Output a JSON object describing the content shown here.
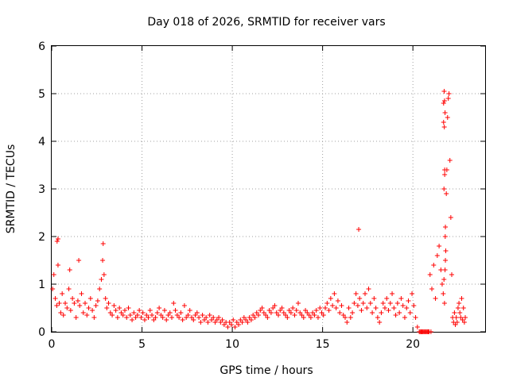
{
  "colors": {
    "series": "#ff0000",
    "axis": "#000000",
    "grid": "#a0a0a0",
    "background": "#ffffff"
  },
  "chart_data": {
    "type": "scatter",
    "title": "Day 018 of 2026, SRMTID for receiver vars",
    "xlabel": "GPS time / hours",
    "ylabel": "SRMTID / TECUs",
    "xlim": [
      0,
      24
    ],
    "ylim": [
      0,
      6
    ],
    "xticks": [
      0,
      5,
      10,
      15,
      20
    ],
    "yticks": [
      0,
      1,
      2,
      3,
      4,
      5,
      6
    ],
    "x_tick_labels": [
      "0",
      "5",
      "10",
      "15",
      "20"
    ],
    "y_tick_labels": [
      "0",
      "1",
      "2",
      "3",
      "4",
      "5",
      "6"
    ],
    "grid": true,
    "marker": "+",
    "series": [
      {
        "name": "SRMTID",
        "x": [
          0.05,
          0.12,
          0.2,
          0.28,
          0.35,
          0.42,
          0.5,
          0.58,
          0.65,
          0.75,
          0.85,
          0.95,
          1.05,
          1.15,
          1.25,
          1.35,
          1.45,
          1.55,
          1.65,
          1.75,
          1.85,
          1.95,
          2.05,
          2.15,
          2.25,
          2.35,
          2.45,
          2.55,
          2.65,
          2.75,
          2.82,
          2.9,
          2.98,
          3.05,
          3.15,
          3.25,
          3.35,
          3.45,
          3.55,
          3.65,
          3.75,
          3.85,
          3.95,
          4.05,
          4.15,
          4.25,
          4.35,
          4.45,
          4.55,
          4.65,
          4.75,
          4.85,
          4.95,
          5.05,
          5.15,
          5.25,
          5.35,
          5.45,
          5.55,
          5.65,
          5.75,
          5.85,
          5.95,
          6.05,
          6.15,
          6.25,
          6.35,
          6.45,
          6.55,
          6.65,
          6.75,
          6.85,
          6.95,
          7.05,
          7.15,
          7.25,
          7.35,
          7.45,
          7.55,
          7.65,
          7.75,
          7.85,
          7.95,
          8.05,
          8.15,
          8.25,
          8.35,
          8.45,
          8.55,
          8.65,
          8.75,
          8.85,
          8.95,
          9.05,
          9.15,
          9.25,
          9.35,
          9.45,
          9.55,
          9.65,
          9.75,
          9.85,
          9.95,
          10.05,
          10.15,
          10.25,
          10.35,
          10.45,
          10.55,
          10.65,
          10.75,
          10.85,
          10.95,
          11.05,
          11.15,
          11.25,
          11.35,
          11.45,
          11.55,
          11.65,
          11.75,
          11.85,
          11.95,
          12.05,
          12.15,
          12.25,
          12.35,
          12.45,
          12.55,
          12.65,
          12.75,
          12.85,
          12.95,
          13.05,
          13.15,
          13.25,
          13.35,
          13.45,
          13.55,
          13.65,
          13.75,
          13.85,
          13.95,
          14.05,
          14.15,
          14.25,
          14.35,
          14.45,
          14.55,
          14.65,
          14.75,
          14.85,
          14.95,
          15.05,
          15.15,
          15.25,
          15.35,
          15.45,
          15.55,
          15.65,
          15.75,
          15.85,
          15.95,
          16.05,
          16.15,
          16.25,
          16.35,
          16.45,
          16.55,
          16.65,
          16.75,
          16.85,
          16.95,
          17.05,
          17.15,
          17.25,
          17.35,
          17.45,
          17.55,
          17.65,
          17.75,
          17.85,
          17.95,
          18.05,
          18.15,
          18.25,
          18.35,
          18.45,
          18.55,
          18.65,
          18.75,
          18.85,
          18.95,
          19.05,
          19.15,
          19.25,
          19.35,
          19.45,
          19.55,
          19.65,
          19.75,
          19.85,
          19.95,
          20.05,
          20.15,
          20.25,
          20.35,
          20.45,
          20.55,
          20.65,
          20.75,
          20.85,
          20.95,
          21.05,
          21.15,
          21.25,
          21.35,
          21.45,
          21.55,
          21.62,
          21.68,
          21.72,
          21.75,
          21.78,
          21.82,
          21.85,
          21.88,
          21.92,
          21.96,
          22.0,
          22.05,
          22.1,
          22.15,
          22.2,
          22.25,
          22.3,
          22.35,
          22.4,
          22.45,
          22.5,
          22.55,
          22.6,
          22.65,
          22.7,
          22.75,
          22.8,
          22.85,
          22.9,
          0.3,
          0.35,
          2.85,
          1.0,
          1.5,
          17.0,
          20.4,
          20.5,
          20.6,
          20.7,
          20.8,
          20.9,
          21.0,
          21.7,
          21.72,
          21.74,
          21.76,
          21.78,
          21.8,
          21.7,
          21.73,
          21.76,
          21.79,
          21.75,
          21.8
        ],
        "y": [
          0.9,
          1.2,
          0.7,
          0.55,
          1.4,
          0.6,
          0.4,
          0.8,
          0.35,
          0.6,
          0.5,
          0.9,
          0.45,
          0.7,
          0.6,
          0.3,
          0.65,
          0.55,
          0.8,
          0.4,
          0.6,
          0.35,
          0.5,
          0.7,
          0.45,
          0.3,
          0.55,
          0.65,
          0.9,
          1.1,
          1.5,
          1.2,
          0.7,
          0.5,
          0.6,
          0.4,
          0.35,
          0.55,
          0.45,
          0.3,
          0.5,
          0.4,
          0.35,
          0.45,
          0.3,
          0.5,
          0.35,
          0.25,
          0.4,
          0.3,
          0.35,
          0.45,
          0.3,
          0.4,
          0.25,
          0.35,
          0.3,
          0.45,
          0.35,
          0.25,
          0.3,
          0.4,
          0.5,
          0.35,
          0.3,
          0.45,
          0.25,
          0.35,
          0.4,
          0.3,
          0.6,
          0.45,
          0.35,
          0.3,
          0.4,
          0.25,
          0.55,
          0.3,
          0.35,
          0.45,
          0.3,
          0.25,
          0.35,
          0.4,
          0.3,
          0.2,
          0.35,
          0.25,
          0.3,
          0.2,
          0.35,
          0.25,
          0.3,
          0.2,
          0.25,
          0.3,
          0.2,
          0.25,
          0.15,
          0.2,
          0.1,
          0.2,
          0.15,
          0.25,
          0.1,
          0.2,
          0.15,
          0.25,
          0.2,
          0.3,
          0.25,
          0.2,
          0.3,
          0.25,
          0.35,
          0.3,
          0.4,
          0.35,
          0.45,
          0.5,
          0.4,
          0.35,
          0.3,
          0.45,
          0.4,
          0.5,
          0.55,
          0.4,
          0.35,
          0.45,
          0.5,
          0.4,
          0.35,
          0.3,
          0.45,
          0.4,
          0.5,
          0.35,
          0.45,
          0.6,
          0.4,
          0.35,
          0.3,
          0.45,
          0.4,
          0.35,
          0.3,
          0.4,
          0.35,
          0.45,
          0.3,
          0.5,
          0.4,
          0.35,
          0.5,
          0.6,
          0.45,
          0.7,
          0.55,
          0.8,
          0.5,
          0.65,
          0.4,
          0.55,
          0.35,
          0.3,
          0.2,
          0.5,
          0.3,
          0.4,
          0.6,
          0.8,
          0.55,
          0.7,
          0.45,
          0.6,
          0.8,
          0.5,
          0.9,
          0.6,
          0.4,
          0.7,
          0.5,
          0.3,
          0.2,
          0.4,
          0.6,
          0.5,
          0.7,
          0.45,
          0.6,
          0.8,
          0.5,
          0.35,
          0.6,
          0.4,
          0.7,
          0.55,
          0.3,
          0.5,
          0.65,
          0.4,
          0.8,
          0.55,
          0.3,
          0.1,
          0.0,
          0.0,
          0.0,
          0.0,
          0.0,
          0.0,
          1.2,
          0.9,
          1.4,
          0.7,
          1.6,
          1.8,
          1.3,
          1.0,
          0.8,
          1.1,
          0.6,
          1.3,
          1.7,
          2.9,
          3.4,
          4.5,
          4.9,
          5.0,
          3.6,
          2.4,
          1.2,
          0.3,
          0.2,
          0.4,
          0.15,
          0.3,
          0.2,
          0.5,
          0.6,
          0.4,
          0.3,
          0.7,
          0.25,
          0.5,
          0.2,
          0.3,
          1.9,
          1.95,
          1.85,
          1.3,
          1.5,
          2.15,
          0.0,
          0.0,
          0.0,
          0.0,
          0.0,
          0.0,
          0.0,
          4.8,
          3.0,
          4.3,
          3.3,
          4.6,
          2.2,
          4.4,
          5.05,
          3.4,
          2.0,
          4.85,
          1.5
        ]
      }
    ]
  }
}
